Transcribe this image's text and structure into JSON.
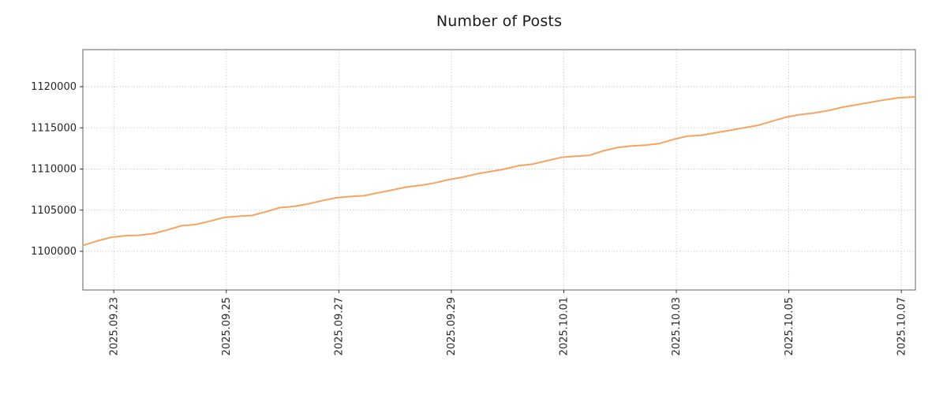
{
  "figure": {
    "title": "Number of Posts"
  },
  "chart_data": {
    "type": "line",
    "title": "Number of Posts",
    "xlabel": "",
    "ylabel": "",
    "grid": {
      "style": "dotted",
      "color": "#b3b3b3"
    },
    "legend": "none",
    "frame_color": "#606060",
    "tick_color": "#333333",
    "x_range": [
      0,
      14.8
    ],
    "y_range": [
      1095300,
      1124500
    ],
    "y_ticks": [
      {
        "value": 1100000,
        "label": "1100000"
      },
      {
        "value": 1105000,
        "label": "1105000"
      },
      {
        "value": 1110000,
        "label": "1110000"
      },
      {
        "value": 1115000,
        "label": "1115000"
      },
      {
        "value": 1120000,
        "label": "1120000"
      }
    ],
    "x_ticks": [
      {
        "pos": 0.55,
        "label": "2025.09.23"
      },
      {
        "pos": 2.55,
        "label": "2025.09.25"
      },
      {
        "pos": 4.55,
        "label": "2025.09.27"
      },
      {
        "pos": 6.55,
        "label": "2025.09.29"
      },
      {
        "pos": 8.55,
        "label": "2025.10.01"
      },
      {
        "pos": 10.55,
        "label": "2025.10.03"
      },
      {
        "pos": 12.55,
        "label": "2025.10.05"
      },
      {
        "pos": 14.55,
        "label": "2025.10.07"
      }
    ],
    "series": [
      {
        "name": "Number of Posts",
        "color": "#f4a460",
        "line_width": 2,
        "x": [
          0,
          0.25,
          0.5,
          0.75,
          1,
          1.25,
          1.5,
          1.75,
          2,
          2.25,
          2.5,
          2.75,
          3,
          3.25,
          3.5,
          3.75,
          4,
          4.25,
          4.5,
          4.75,
          5,
          5.25,
          5.5,
          5.75,
          6,
          6.25,
          6.5,
          6.75,
          7,
          7.25,
          7.5,
          7.75,
          8,
          8.25,
          8.5,
          8.75,
          9,
          9.25,
          9.5,
          9.75,
          10,
          10.25,
          10.5,
          10.75,
          11,
          11.25,
          11.5,
          11.75,
          12,
          12.25,
          12.5,
          12.75,
          13,
          13.25,
          13.5,
          13.75,
          14,
          14.25,
          14.5,
          14.75,
          14.8
        ],
        "y": [
          1100700,
          1101250,
          1101700,
          1101900,
          1101950,
          1102150,
          1102600,
          1103100,
          1103250,
          1103650,
          1104100,
          1104250,
          1104350,
          1104800,
          1105300,
          1105450,
          1105750,
          1106150,
          1106500,
          1106650,
          1106750,
          1107100,
          1107450,
          1107800,
          1108000,
          1108300,
          1108700,
          1109000,
          1109400,
          1109700,
          1110000,
          1110400,
          1110600,
          1111000,
          1111400,
          1111550,
          1111650,
          1112200,
          1112600,
          1112800,
          1112900,
          1113100,
          1113600,
          1114000,
          1114100,
          1114400,
          1114700,
          1115000,
          1115300,
          1115800,
          1116300,
          1116600,
          1116800,
          1117100,
          1117500,
          1117800,
          1118100,
          1118400,
          1118650,
          1118750,
          1118780
        ]
      }
    ]
  }
}
